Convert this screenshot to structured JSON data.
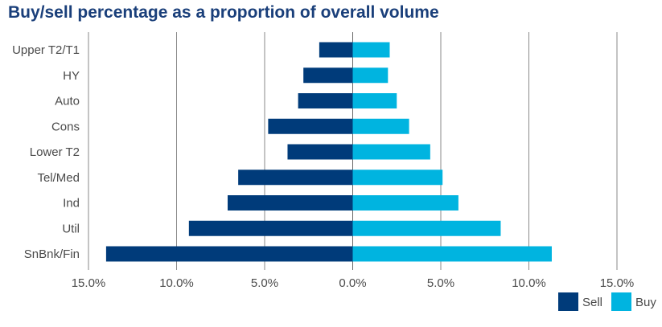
{
  "chart_data": {
    "type": "bar",
    "orientation": "horizontal",
    "title": "Buy/sell percentage as a proportion of overall volume",
    "categories": [
      "Upper T2/T1",
      "HY",
      "Auto",
      "Cons",
      "Lower T2",
      "Tel/Med",
      "Ind",
      "Util",
      "SnBnk/Fin"
    ],
    "series": [
      {
        "name": "Sell",
        "color": "#003b7a",
        "values": [
          1.9,
          2.8,
          3.1,
          4.8,
          3.7,
          6.5,
          7.1,
          9.3,
          14.0
        ]
      },
      {
        "name": "Buy",
        "color": "#00b4e0",
        "values": [
          2.1,
          2.0,
          2.5,
          3.2,
          4.4,
          5.1,
          6.0,
          8.4,
          11.3
        ]
      }
    ],
    "xlim": [
      -15,
      15
    ],
    "xticks": [
      -15,
      -10,
      -5,
      0,
      5,
      10,
      15
    ],
    "tick_labels": [
      "15.0%",
      "10.0%",
      "5.0%",
      "0.0%",
      "5.0%",
      "10.0%",
      "15.0%"
    ],
    "grid": "vertical",
    "legend_position": "bottom-right"
  }
}
